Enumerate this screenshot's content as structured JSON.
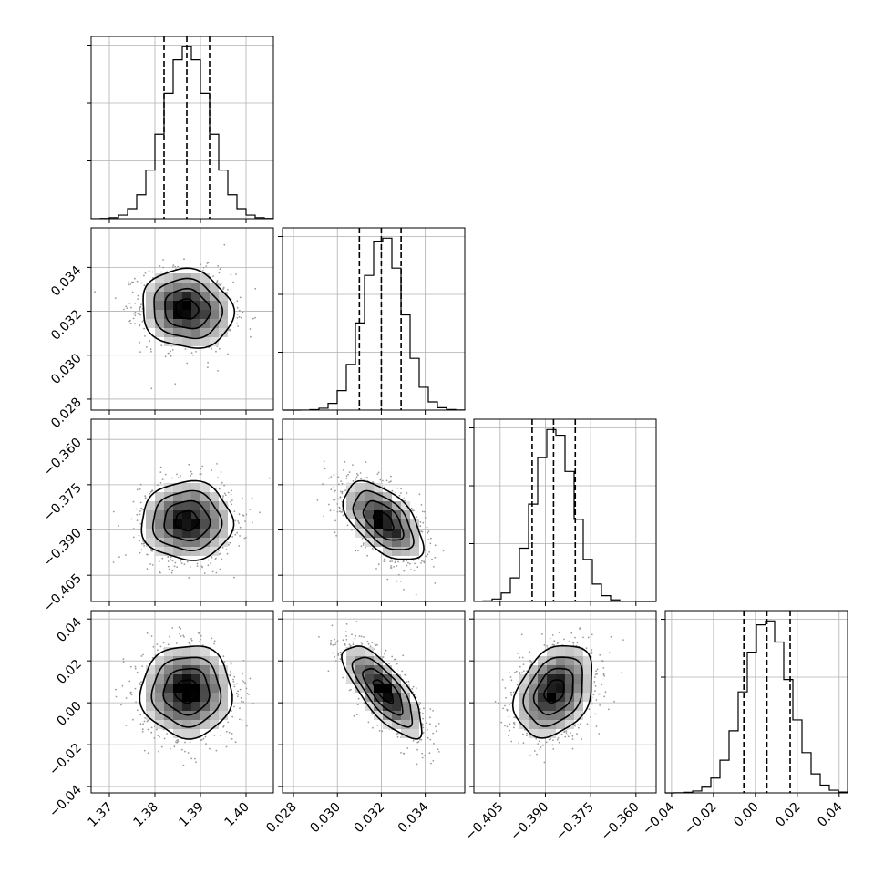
{
  "chart_data": {
    "type": "corner",
    "grid": true,
    "parameters": [
      {
        "index": 0,
        "range": [
          1.366,
          1.406
        ],
        "ticks": [
          1.37,
          1.38,
          1.39,
          1.4
        ],
        "tick_labels": [
          "1.37",
          "1.38",
          "1.39",
          "1.40"
        ],
        "mean": 1.387,
        "std": 0.005,
        "quantiles": [
          1.382,
          1.387,
          1.392
        ],
        "hist_y_ticks": 3
      },
      {
        "index": 1,
        "range": [
          0.0275,
          0.0358
        ],
        "ticks": [
          0.028,
          0.03,
          0.032,
          0.034
        ],
        "tick_labels": [
          "0.028",
          "0.030",
          "0.032",
          "0.034"
        ],
        "mean": 0.0321,
        "std": 0.0009,
        "quantiles": [
          0.031,
          0.032,
          0.0329
        ],
        "hist_y_ticks": 3
      },
      {
        "index": 2,
        "range": [
          -0.4137,
          -0.3533
        ],
        "ticks": [
          -0.405,
          -0.39,
          -0.375,
          -0.36
        ],
        "tick_labels": [
          "−0.405",
          "−0.390",
          "−0.375",
          "−0.360"
        ],
        "mean": -0.387,
        "std": 0.0065,
        "quantiles": [
          -0.3944,
          -0.3873,
          -0.3801
        ],
        "hist_y_ticks": 3
      },
      {
        "index": 3,
        "range": [
          -0.043,
          0.044
        ],
        "ticks": [
          -0.04,
          -0.02,
          0.0,
          0.02,
          0.04
        ],
        "tick_labels": [
          "−0.04",
          "−0.02",
          "0.00",
          "0.02",
          "0.04"
        ],
        "mean": 0.0055,
        "std": 0.011,
        "quantiles": [
          -0.0055,
          0.0055,
          0.0166
        ],
        "hist_y_ticks": 3
      }
    ],
    "correlations": [
      {
        "pair": [
          0,
          1
        ],
        "rho": -0.1
      },
      {
        "pair": [
          0,
          2
        ],
        "rho": 0.0
      },
      {
        "pair": [
          1,
          2
        ],
        "rho": -0.55
      },
      {
        "pair": [
          0,
          3
        ],
        "rho": 0.0
      },
      {
        "pair": [
          1,
          3
        ],
        "rho": -0.75
      },
      {
        "pair": [
          2,
          3
        ],
        "rho": 0.3
      }
    ],
    "contour_levels_sigma": [
      0.5,
      1.0,
      1.5,
      2.0
    ],
    "colors": {
      "line": "#000000",
      "grid": "#b0b0b0",
      "scatter": "#9a9a9a",
      "density_dark": "#000000",
      "density_light": "#ffffff"
    }
  }
}
